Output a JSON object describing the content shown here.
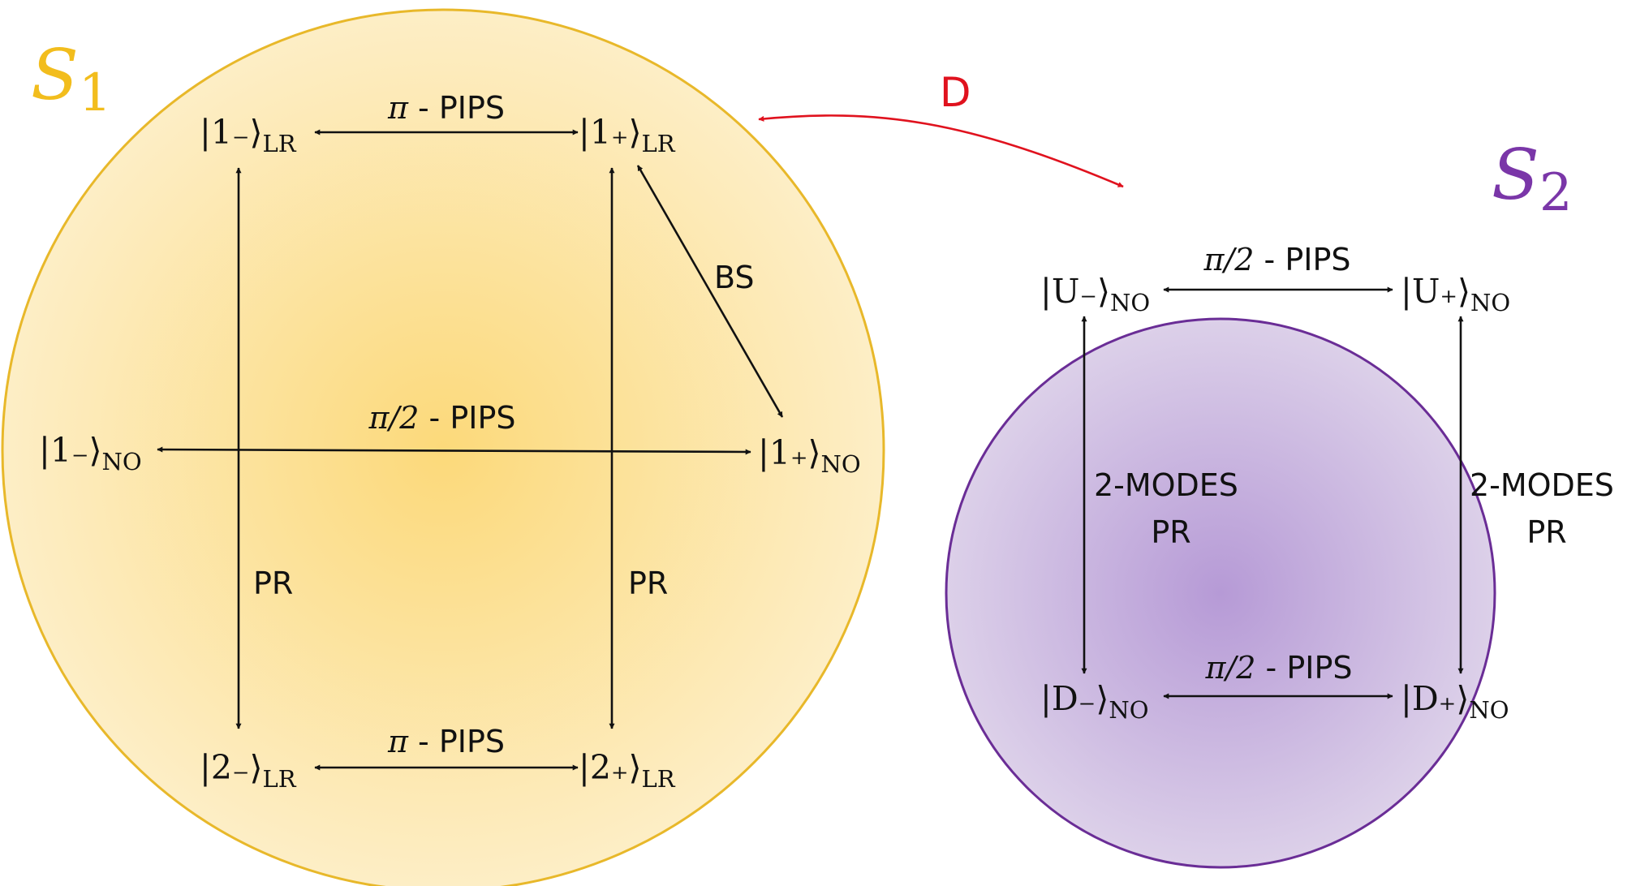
{
  "colors": {
    "s1_fill_center": "#fcd97a",
    "s1_fill_edge": "#fdeec6",
    "s1_stroke": "#e8b82a",
    "s1_label": "#f2bd1d",
    "s2_fill_center": "#b69ad6",
    "s2_fill_edge": "#dcd0e9",
    "s2_stroke": "#6a2d96",
    "s2_label": "#7a36a8",
    "link": "#e0121e",
    "ink": "#111111"
  },
  "sets": {
    "s1": {
      "script": "S",
      "index": "1"
    },
    "s2": {
      "script": "S",
      "index": "2"
    }
  },
  "link_label": "D",
  "s1": {
    "states": {
      "one_minus_lr": {
        "ket": "|1₋⟩",
        "sub": "LR"
      },
      "one_plus_lr": {
        "ket": "|1₊⟩",
        "sub": "LR"
      },
      "one_minus_no": {
        "ket": "|1₋⟩",
        "sub": "NO"
      },
      "one_plus_no": {
        "ket": "|1₊⟩",
        "sub": "NO"
      },
      "two_minus_lr": {
        "ket": "|2₋⟩",
        "sub": "LR"
      },
      "two_plus_lr": {
        "ket": "|2₊⟩",
        "sub": "LR"
      }
    },
    "ops": {
      "top": {
        "angle": "π",
        "name": " - PIPS"
      },
      "middle": {
        "angle": "π/2",
        "name": " - PIPS"
      },
      "bottom": {
        "angle": "π",
        "name": " - PIPS"
      },
      "bs": "BS",
      "left_pr": "PR",
      "right_pr": "PR"
    }
  },
  "s2": {
    "states": {
      "u_minus": {
        "ket": "|U₋⟩",
        "sub": "NO"
      },
      "u_plus": {
        "ket": "|U₊⟩",
        "sub": "NO"
      },
      "d_minus": {
        "ket": "|D₋⟩",
        "sub": "NO"
      },
      "d_plus": {
        "ket": "|D₊⟩",
        "sub": "NO"
      }
    },
    "ops": {
      "top": {
        "angle": "π/2",
        "name": " - PIPS"
      },
      "bottom": {
        "angle": "π/2",
        "name": " - PIPS"
      },
      "left": {
        "line1": "2-MODES",
        "line2": "PR"
      },
      "right": {
        "line1": "2-MODES",
        "line2": "PR"
      }
    }
  }
}
